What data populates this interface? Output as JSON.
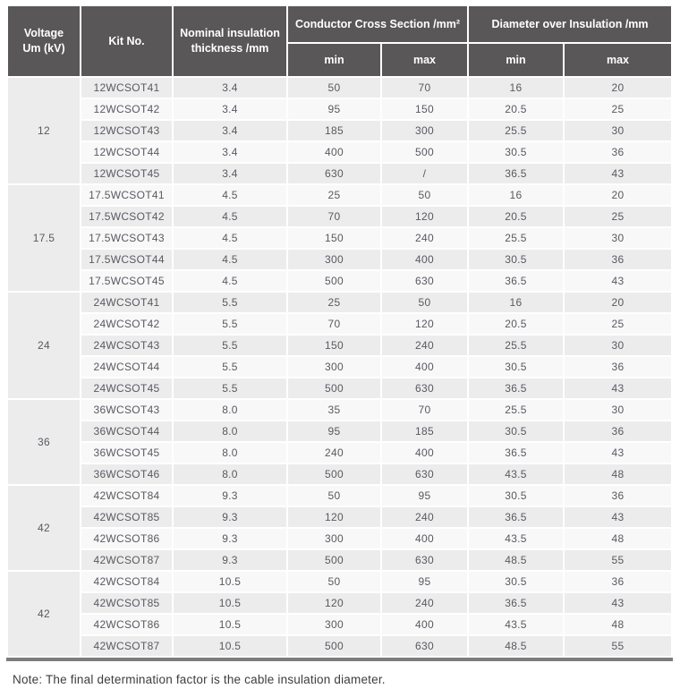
{
  "table": {
    "headers": {
      "voltage": "Voltage\nUm (kV)",
      "kit": "Kit No.",
      "thickness": "Nominal insulation\nthickness /mm",
      "ccs": "Conductor Cross Section /mm²",
      "dia": "Diameter over Insulation /mm",
      "min": "min",
      "max": "max"
    },
    "groups": [
      {
        "voltage": "12",
        "rows": [
          {
            "kit": "12WCSOT41",
            "thickness": "3.4",
            "ccs_min": "50",
            "ccs_max": "70",
            "dia_min": "16",
            "dia_max": "20"
          },
          {
            "kit": "12WCSOT42",
            "thickness": "3.4",
            "ccs_min": "95",
            "ccs_max": "150",
            "dia_min": "20.5",
            "dia_max": "25"
          },
          {
            "kit": "12WCSOT43",
            "thickness": "3.4",
            "ccs_min": "185",
            "ccs_max": "300",
            "dia_min": "25.5",
            "dia_max": "30"
          },
          {
            "kit": "12WCSOT44",
            "thickness": "3.4",
            "ccs_min": "400",
            "ccs_max": "500",
            "dia_min": "30.5",
            "dia_max": "36"
          },
          {
            "kit": "12WCSOT45",
            "thickness": "3.4",
            "ccs_min": "630",
            "ccs_max": "/",
            "dia_min": "36.5",
            "dia_max": "43"
          }
        ]
      },
      {
        "voltage": "17.5",
        "rows": [
          {
            "kit": "17.5WCSOT41",
            "thickness": "4.5",
            "ccs_min": "25",
            "ccs_max": "50",
            "dia_min": "16",
            "dia_max": "20"
          },
          {
            "kit": "17.5WCSOT42",
            "thickness": "4.5",
            "ccs_min": "70",
            "ccs_max": "120",
            "dia_min": "20.5",
            "dia_max": "25"
          },
          {
            "kit": "17.5WCSOT43",
            "thickness": "4.5",
            "ccs_min": "150",
            "ccs_max": "240",
            "dia_min": "25.5",
            "dia_max": "30"
          },
          {
            "kit": "17.5WCSOT44",
            "thickness": "4.5",
            "ccs_min": "300",
            "ccs_max": "400",
            "dia_min": "30.5",
            "dia_max": "36"
          },
          {
            "kit": "17.5WCSOT45",
            "thickness": "4.5",
            "ccs_min": "500",
            "ccs_max": "630",
            "dia_min": "36.5",
            "dia_max": "43"
          }
        ]
      },
      {
        "voltage": "24",
        "rows": [
          {
            "kit": "24WCSOT41",
            "thickness": "5.5",
            "ccs_min": "25",
            "ccs_max": "50",
            "dia_min": "16",
            "dia_max": "20"
          },
          {
            "kit": "24WCSOT42",
            "thickness": "5.5",
            "ccs_min": "70",
            "ccs_max": "120",
            "dia_min": "20.5",
            "dia_max": "25"
          },
          {
            "kit": "24WCSOT43",
            "thickness": "5.5",
            "ccs_min": "150",
            "ccs_max": "240",
            "dia_min": "25.5",
            "dia_max": "30"
          },
          {
            "kit": "24WCSOT44",
            "thickness": "5.5",
            "ccs_min": "300",
            "ccs_max": "400",
            "dia_min": "30.5",
            "dia_max": "36"
          },
          {
            "kit": "24WCSOT45",
            "thickness": "5.5",
            "ccs_min": "500",
            "ccs_max": "630",
            "dia_min": "36.5",
            "dia_max": "43"
          }
        ]
      },
      {
        "voltage": "36",
        "rows": [
          {
            "kit": "36WCSOT43",
            "thickness": "8.0",
            "ccs_min": "35",
            "ccs_max": "70",
            "dia_min": "25.5",
            "dia_max": "30"
          },
          {
            "kit": "36WCSOT44",
            "thickness": "8.0",
            "ccs_min": "95",
            "ccs_max": "185",
            "dia_min": "30.5",
            "dia_max": "36"
          },
          {
            "kit": "36WCSOT45",
            "thickness": "8.0",
            "ccs_min": "240",
            "ccs_max": "400",
            "dia_min": "36.5",
            "dia_max": "43"
          },
          {
            "kit": "36WCSOT46",
            "thickness": "8.0",
            "ccs_min": "500",
            "ccs_max": "630",
            "dia_min": "43.5",
            "dia_max": "48"
          }
        ]
      },
      {
        "voltage": "42",
        "rows": [
          {
            "kit": "42WCSOT84",
            "thickness": "9.3",
            "ccs_min": "50",
            "ccs_max": "95",
            "dia_min": "30.5",
            "dia_max": "36"
          },
          {
            "kit": "42WCSOT85",
            "thickness": "9.3",
            "ccs_min": "120",
            "ccs_max": "240",
            "dia_min": "36.5",
            "dia_max": "43"
          },
          {
            "kit": "42WCSOT86",
            "thickness": "9.3",
            "ccs_min": "300",
            "ccs_max": "400",
            "dia_min": "43.5",
            "dia_max": "48"
          },
          {
            "kit": "42WCSOT87",
            "thickness": "9.3",
            "ccs_min": "500",
            "ccs_max": "630",
            "dia_min": "48.5",
            "dia_max": "55"
          }
        ]
      },
      {
        "voltage": "42",
        "rows": [
          {
            "kit": "42WCSOT84",
            "thickness": "10.5",
            "ccs_min": "50",
            "ccs_max": "95",
            "dia_min": "30.5",
            "dia_max": "36"
          },
          {
            "kit": "42WCSOT85",
            "thickness": "10.5",
            "ccs_min": "120",
            "ccs_max": "240",
            "dia_min": "36.5",
            "dia_max": "43"
          },
          {
            "kit": "42WCSOT86",
            "thickness": "10.5",
            "ccs_min": "300",
            "ccs_max": "400",
            "dia_min": "43.5",
            "dia_max": "48"
          },
          {
            "kit": "42WCSOT87",
            "thickness": "10.5",
            "ccs_min": "500",
            "ccs_max": "630",
            "dia_min": "48.5",
            "dia_max": "55"
          }
        ]
      }
    ]
  },
  "note": "Note: The final determination factor is the cable insulation diameter.",
  "colors": {
    "header_bg": "#595757",
    "header_text": "#ffffff",
    "row_gray": "#ececec",
    "row_light": "#f8f8f8",
    "body_text": "#5a5861",
    "bottom_bar": "#7e7c7c"
  }
}
